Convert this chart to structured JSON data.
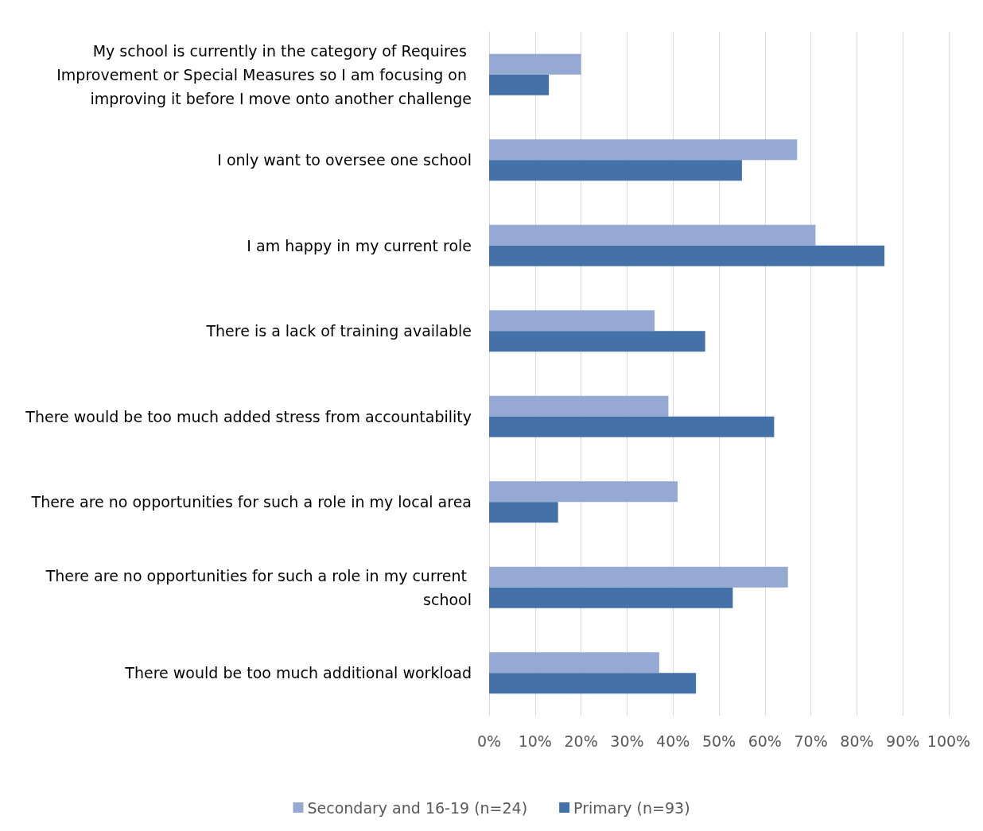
{
  "chart_data": {
    "type": "bar",
    "orientation": "horizontal",
    "categories": [
      "My school is currently in the category of Requires Improvement or Special Measures so I am focusing on improving it before I move onto another challenge",
      "I only want to oversee one school",
      "I am happy in my current role",
      "There is a lack of training available",
      "There would be too much added stress from accountability",
      "There are no opportunities for such a role in my local area",
      "There are no opportunities for such a role in my current school",
      "There would be too much additional workload"
    ],
    "series": [
      {
        "name": "Secondary and 16-19 (n=24)",
        "color": "#95a9d3",
        "values": [
          20,
          67,
          71,
          36,
          39,
          41,
          65,
          37
        ]
      },
      {
        "name": "Primary (n=93)",
        "color": "#4472a8",
        "values": [
          13,
          55,
          86,
          47,
          62,
          15,
          53,
          45
        ]
      }
    ],
    "xlim": [
      0,
      100
    ],
    "xticks": [
      {
        "value": 0,
        "label": "0%"
      },
      {
        "value": 10,
        "label": "10%"
      },
      {
        "value": 20,
        "label": "20%"
      },
      {
        "value": 30,
        "label": "30%"
      },
      {
        "value": 40,
        "label": "40%"
      },
      {
        "value": 50,
        "label": "50%"
      },
      {
        "value": 60,
        "label": "60%"
      },
      {
        "value": 70,
        "label": "70%"
      },
      {
        "value": 80,
        "label": "80%"
      },
      {
        "value": 90,
        "label": "90%"
      },
      {
        "value": 100,
        "label": "100%"
      }
    ],
    "grid": "x",
    "legend": "bottom"
  }
}
